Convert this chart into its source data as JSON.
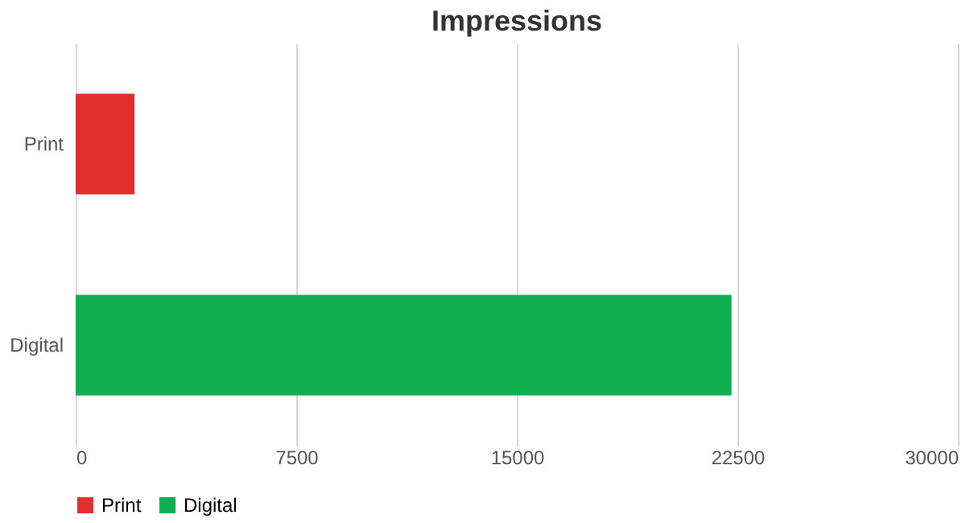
{
  "chart_data": {
    "type": "bar",
    "orientation": "horizontal",
    "title": "Impressions",
    "categories": [
      "Print",
      "Digital"
    ],
    "series": [
      {
        "name": "Print",
        "color": "#e32e2e",
        "values": [
          2000,
          null
        ]
      },
      {
        "name": "Digital",
        "color": "#0daf51",
        "values": [
          null,
          22300
        ]
      }
    ],
    "xlim": [
      0,
      30000
    ],
    "xticks": [
      0,
      7500,
      15000,
      22500,
      30000
    ],
    "grid": "x",
    "legend": "bottom"
  }
}
